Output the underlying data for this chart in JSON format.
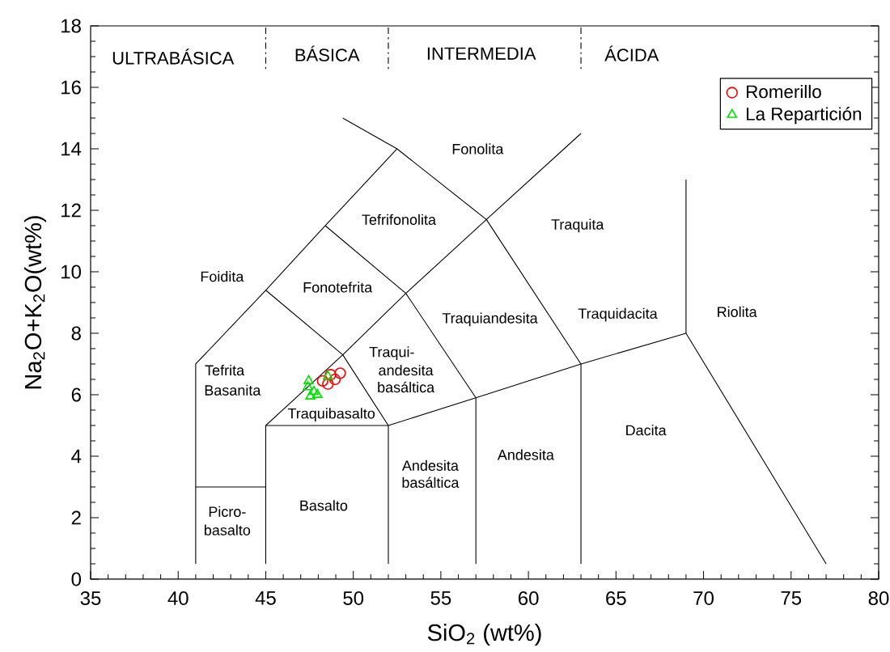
{
  "chart_data": {
    "type": "scatter",
    "xlabel": "SiO$_{2}$ (wt%)",
    "ylabel": "Na$_{2}$O+K$_{2}$O(wt%)",
    "xlim": [
      35,
      80
    ],
    "ylim": [
      0,
      18
    ],
    "xticks": [
      35,
      40,
      45,
      50,
      55,
      60,
      65,
      70,
      75,
      80
    ],
    "yticks": [
      0,
      2,
      4,
      6,
      8,
      10,
      12,
      14,
      16,
      18
    ],
    "legend": "top right",
    "series": [
      {
        "name": "Romerillo",
        "marker": "circle",
        "color": "#ff0000",
        "x": [
          48.25,
          48.7,
          49.25,
          48.55,
          48.95
        ],
        "values": [
          6.45,
          6.65,
          6.7,
          6.35,
          6.5
        ]
      },
      {
        "name": "La Repartición",
        "marker": "triangle",
        "color": "#00e000",
        "x": [
          47.4,
          47.75,
          47.55,
          47.95,
          48.55,
          47.45
        ],
        "values": [
          6.25,
          6.1,
          5.95,
          6.0,
          6.6,
          6.45
        ]
      },
      {
        "type": "line",
        "color": "#000000",
        "line_style": "solid",
        "x": [
          41,
          41,
          45,
          48.4,
          52.5,
          49.4
        ],
        "values": [
          0.5,
          7,
          9.4,
          11.5,
          14,
          15
        ]
      },
      {
        "type": "line",
        "color": "#000000",
        "line_style": "solid",
        "x": [
          41,
          45
        ],
        "values": [
          3,
          3
        ]
      },
      {
        "type": "line",
        "color": "#000000",
        "line_style": "solid",
        "x": [
          45,
          45,
          49.4,
          53,
          57.6,
          63
        ],
        "values": [
          0.5,
          5,
          7.3,
          9.3,
          11.7,
          14.5
        ]
      },
      {
        "type": "line",
        "color": "#000000",
        "line_style": "solid",
        "x": [
          45,
          52,
          57,
          63,
          69,
          77
        ],
        "values": [
          5,
          5,
          5.9,
          7,
          8,
          0.5
        ]
      },
      {
        "type": "line",
        "color": "#000000",
        "line_style": "solid",
        "x": [
          45,
          49.4,
          52,
          52
        ],
        "values": [
          9.4,
          7.3,
          5,
          0.5
        ]
      },
      {
        "type": "line",
        "color": "#000000",
        "line_style": "solid",
        "x": [
          48.4,
          53,
          57,
          57
        ],
        "values": [
          11.5,
          9.3,
          5.9,
          0.5
        ]
      },
      {
        "type": "line",
        "color": "#000000",
        "line_style": "solid",
        "x": [
          52.5,
          57.6,
          63,
          63
        ],
        "values": [
          14,
          11.7,
          7,
          0.5
        ]
      },
      {
        "type": "line",
        "color": "#000000",
        "line_style": "solid",
        "x": [
          69,
          69
        ],
        "values": [
          8,
          13
        ]
      },
      {
        "type": "line",
        "color": "#000000",
        "line_style": "dashed",
        "x": [
          45,
          45
        ],
        "values": [
          18,
          16.6
        ]
      },
      {
        "type": "line",
        "color": "#000000",
        "line_style": "dashed",
        "x": [
          52,
          52
        ],
        "values": [
          18,
          16.6
        ]
      },
      {
        "type": "line",
        "color": "#000000",
        "line_style": "dashed",
        "x": [
          63,
          63
        ],
        "values": [
          18,
          16.6
        ]
      }
    ],
    "annotations": [
      "ULTRABÁSICA",
      "BÁSICA",
      "INTERMEDIA",
      "ÁCIDA",
      "Fonolita",
      "Tefrifonolita",
      "Traquita",
      "Foidita",
      "Fonotefrita",
      "Traquiandesita",
      "Traquidacita",
      "Riolita",
      "Tefrita",
      "Basanita",
      "Traqui-",
      "andesita",
      "basáltica",
      "Traquibasalto",
      "Dacita",
      "Andesita",
      "Andesita",
      "basáltica",
      "Basalto",
      "Picro-",
      "basalto"
    ]
  }
}
